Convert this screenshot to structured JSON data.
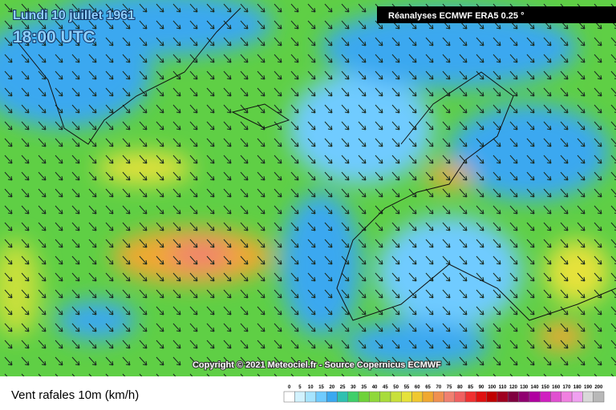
{
  "header": {
    "date": "Lundi 10 juillet 1961",
    "time": "18:00 UTC",
    "source": "Réanalyses ECMWF ERA5 0.25 °"
  },
  "copyright": "Copyright © 2021 Meteociel.fr - Source Copernicus ECMWF",
  "legend": {
    "title": "Vent rafales 10m (km/h)",
    "values": [
      0,
      5,
      10,
      15,
      20,
      25,
      30,
      35,
      40,
      45,
      50,
      55,
      60,
      65,
      70,
      75,
      80,
      85,
      90,
      100,
      110,
      120,
      130,
      140,
      150,
      160,
      170,
      180,
      190,
      200
    ],
    "colors": [
      "#ffffff",
      "#d2f2ff",
      "#a6e4ff",
      "#6fcbff",
      "#3aa8f0",
      "#2fc0b0",
      "#3fcf6a",
      "#6ed23a",
      "#8fd83a",
      "#a8dc3a",
      "#c8e03a",
      "#e6e23a",
      "#f0c830",
      "#f0a830",
      "#f09050",
      "#f08070",
      "#f06060",
      "#f03030",
      "#e01010",
      "#c00000",
      "#a00020",
      "#800040",
      "#900070",
      "#b000a0",
      "#d020c0",
      "#e050d0",
      "#f080e0",
      "#f0a0f0",
      "#d8d8d8",
      "#b8b8b8"
    ]
  }
}
